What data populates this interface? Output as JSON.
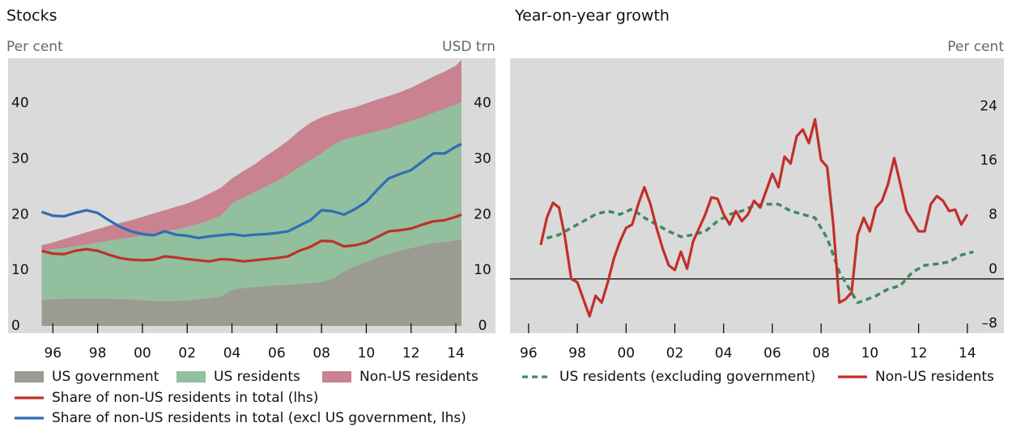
{
  "chart_data": [
    {
      "type": "area",
      "title": "Stocks",
      "y_label": "Per cent",
      "y2_label": "USD trn",
      "x": [
        1995.5,
        1996,
        1996.5,
        1997,
        1997.5,
        1998,
        1998.5,
        1999,
        1999.5,
        2000,
        2000.5,
        2001,
        2001.5,
        2002,
        2002.5,
        2003,
        2003.5,
        2004,
        2004.5,
        2005,
        2005.5,
        2006,
        2006.5,
        2007,
        2007.5,
        2008,
        2008.5,
        2009,
        2009.5,
        2010,
        2010.5,
        2011,
        2011.5,
        2012,
        2012.5,
        2013,
        2013.5,
        2014,
        2014.25
      ],
      "xlim": [
        1994.0,
        2015.77
      ],
      "xticks": [
        {
          "value": 1996,
          "label": "96"
        },
        {
          "value": 1998,
          "label": "98"
        },
        {
          "value": 2000,
          "label": "00"
        },
        {
          "value": 2002,
          "label": "02"
        },
        {
          "value": 2004,
          "label": "04"
        },
        {
          "value": 2006,
          "label": "06"
        },
        {
          "value": 2008,
          "label": "08"
        },
        {
          "value": 2010,
          "label": "10"
        },
        {
          "value": 2012,
          "label": "12"
        },
        {
          "value": 2014,
          "label": "14"
        }
      ],
      "ylim": [
        -1.3,
        48.1
      ],
      "yticks": [
        0,
        10,
        20,
        30,
        40
      ],
      "y2lim": [
        -1.3,
        48.1
      ],
      "y2ticks": [
        0,
        10,
        20,
        30,
        40
      ],
      "background": "#dadada",
      "series": [
        {
          "name": "US government",
          "type": "area",
          "axis": "y2",
          "color": "#9c9b91",
          "values": [
            4.7,
            4.8,
            4.9,
            4.9,
            4.9,
            4.9,
            4.9,
            4.8,
            4.8,
            4.6,
            4.5,
            4.5,
            4.5,
            4.6,
            4.8,
            5.0,
            5.3,
            6.5,
            6.8,
            7.0,
            7.2,
            7.3,
            7.4,
            7.5,
            7.7,
            7.9,
            8.5,
            9.8,
            10.7,
            11.5,
            12.4,
            12.9,
            13.5,
            14.0,
            14.5,
            14.9,
            15.1,
            15.4,
            15.6
          ]
        },
        {
          "name": "US residents",
          "type": "area",
          "axis": "y2",
          "color": "#92bf9d",
          "values": [
            8.8,
            9.0,
            9.1,
            9.4,
            9.7,
            10.1,
            10.4,
            10.8,
            11.1,
            11.7,
            12.1,
            12.5,
            12.8,
            13.2,
            13.5,
            14.0,
            14.5,
            15.5,
            16.2,
            17.0,
            17.8,
            18.7,
            19.8,
            21.0,
            22.1,
            23.1,
            24.0,
            23.7,
            23.3,
            23.0,
            22.6,
            22.6,
            22.7,
            22.8,
            23.0,
            23.4,
            23.9,
            24.4,
            24.6
          ]
        },
        {
          "name": "Non-US residents",
          "type": "area",
          "axis": "y2",
          "color": "#c9828f",
          "values": [
            1.0,
            1.2,
            1.6,
            1.9,
            2.2,
            2.4,
            2.7,
            2.9,
            3.1,
            3.3,
            3.6,
            3.8,
            4.1,
            4.2,
            4.5,
            4.8,
            5.0,
            4.5,
            4.8,
            5.0,
            5.5,
            5.8,
            6.1,
            6.5,
            6.7,
            6.5,
            5.7,
            5.3,
            5.3,
            5.5,
            5.7,
            5.8,
            5.8,
            6.0,
            6.3,
            6.5,
            6.7,
            7.0,
            7.6
          ]
        },
        {
          "name": "Share of non-US residents in total (lhs)",
          "type": "line",
          "color": "#c0302a",
          "values": [
            13.5,
            13.0,
            12.9,
            13.5,
            13.8,
            13.5,
            12.8,
            12.2,
            11.9,
            11.8,
            11.9,
            12.5,
            12.3,
            12.0,
            11.8,
            11.6,
            12.0,
            11.9,
            11.6,
            11.8,
            12.0,
            12.2,
            12.5,
            13.5,
            14.2,
            15.3,
            15.2,
            14.3,
            14.5,
            15.0,
            16.0,
            17.0,
            17.2,
            17.5,
            18.2,
            18.8,
            19.0,
            19.6,
            20.0
          ]
        },
        {
          "name": "Share of non-US residents in total (excl US government, lhs)",
          "type": "line",
          "color": "#2f6db5",
          "values": [
            20.5,
            19.8,
            19.7,
            20.3,
            20.8,
            20.3,
            19.0,
            17.8,
            17.0,
            16.5,
            16.3,
            17.0,
            16.4,
            16.2,
            15.8,
            16.1,
            16.3,
            16.5,
            16.2,
            16.4,
            16.5,
            16.7,
            17.0,
            18.0,
            19.0,
            20.8,
            20.6,
            20.0,
            21.0,
            22.3,
            24.5,
            26.5,
            27.3,
            28.0,
            29.5,
            31.0,
            31.0,
            32.2,
            32.7
          ]
        }
      ]
    },
    {
      "type": "line",
      "title": "Year-on-year growth",
      "y_label": "Per cent",
      "xlim": [
        1995.24,
        2015.5
      ],
      "xticks": [
        {
          "value": 1996,
          "label": "96"
        },
        {
          "value": 1998,
          "label": "98"
        },
        {
          "value": 2000,
          "label": "00"
        },
        {
          "value": 2002,
          "label": "02"
        },
        {
          "value": 2004,
          "label": "04"
        },
        {
          "value": 2006,
          "label": "06"
        },
        {
          "value": 2008,
          "label": "08"
        },
        {
          "value": 2010,
          "label": "10"
        },
        {
          "value": 2012,
          "label": "12"
        },
        {
          "value": 2014,
          "label": "14"
        }
      ],
      "ylim": [
        -8,
        32.5
      ],
      "yticks": [
        {
          "value": -8,
          "label": "–8"
        },
        0,
        8,
        16,
        24
      ],
      "zero_line": true,
      "background": "#dadada",
      "series": [
        {
          "name": "US residents (excluding government)",
          "color": "#3f8a5c",
          "dash": true,
          "x": [
            1996.75,
            1997.25,
            1997.75,
            1998.25,
            1998.75,
            1999.25,
            1999.75,
            2000.25,
            2000.75,
            2001.25,
            2001.75,
            2002.25,
            2002.75,
            2003.25,
            2003.75,
            2004.25,
            2004.75,
            2005.25,
            2005.75,
            2006.25,
            2006.75,
            2007.25,
            2007.75,
            2008.25,
            2008.75,
            2009.25,
            2009.5,
            2009.75,
            2010.25,
            2010.75,
            2011.25,
            2011.75,
            2012.25,
            2012.75,
            2013.25,
            2013.75,
            2014.25
          ],
          "values": [
            6,
            6.5,
            7.5,
            8.5,
            9.5,
            10,
            9.5,
            10.3,
            9,
            8,
            7,
            6.2,
            6.5,
            7,
            8.5,
            9.5,
            10,
            10.8,
            11,
            11,
            10,
            9.5,
            9,
            6,
            1,
            -2,
            -3.5,
            -3.2,
            -2.5,
            -1.5,
            -1,
            1,
            2,
            2.2,
            2.5,
            3.5,
            4
          ]
        },
        {
          "name": "Non-US residents",
          "color": "#c0302a",
          "dash": false,
          "x": [
            1996.5,
            1996.75,
            1997,
            1997.25,
            1997.5,
            1997.75,
            1998,
            1998.25,
            1998.5,
            1998.75,
            1999,
            1999.25,
            1999.5,
            1999.75,
            2000,
            2000.25,
            2000.5,
            2000.75,
            2001,
            2001.25,
            2001.5,
            2001.75,
            2002,
            2002.25,
            2002.5,
            2002.75,
            2003,
            2003.25,
            2003.5,
            2003.75,
            2004,
            2004.25,
            2004.5,
            2004.75,
            2005,
            2005.25,
            2005.5,
            2005.75,
            2006,
            2006.25,
            2006.5,
            2006.75,
            2007,
            2007.25,
            2007.5,
            2007.75,
            2008,
            2008.25,
            2008.5,
            2008.75,
            2009,
            2009.25,
            2009.5,
            2009.75,
            2010,
            2010.25,
            2010.5,
            2010.75,
            2011,
            2011.25,
            2011.5,
            2011.75,
            2012,
            2012.25,
            2012.5,
            2012.75,
            2013,
            2013.25,
            2013.5,
            2013.75,
            2014
          ],
          "values": [
            5,
            9,
            11.2,
            10.5,
            6,
            0,
            -0.5,
            -3,
            -5.5,
            -2.5,
            -3.5,
            -0.5,
            3,
            5.5,
            7.5,
            8,
            11,
            13.5,
            11,
            7.5,
            4.5,
            2,
            1.3,
            4,
            1.5,
            5.5,
            7.5,
            9.5,
            12,
            11.8,
            9.5,
            8,
            10,
            8.5,
            9.5,
            11.5,
            10.5,
            13,
            15.5,
            13.5,
            18,
            17,
            21,
            22,
            20,
            23.5,
            17.5,
            16.5,
            8,
            -3.5,
            -3,
            -2,
            6.5,
            9,
            7,
            10.5,
            11.5,
            14,
            17.8,
            14,
            10,
            8.5,
            7,
            7,
            11,
            12.2,
            11.5,
            10,
            10.2,
            8,
            9.5
          ]
        }
      ]
    }
  ]
}
